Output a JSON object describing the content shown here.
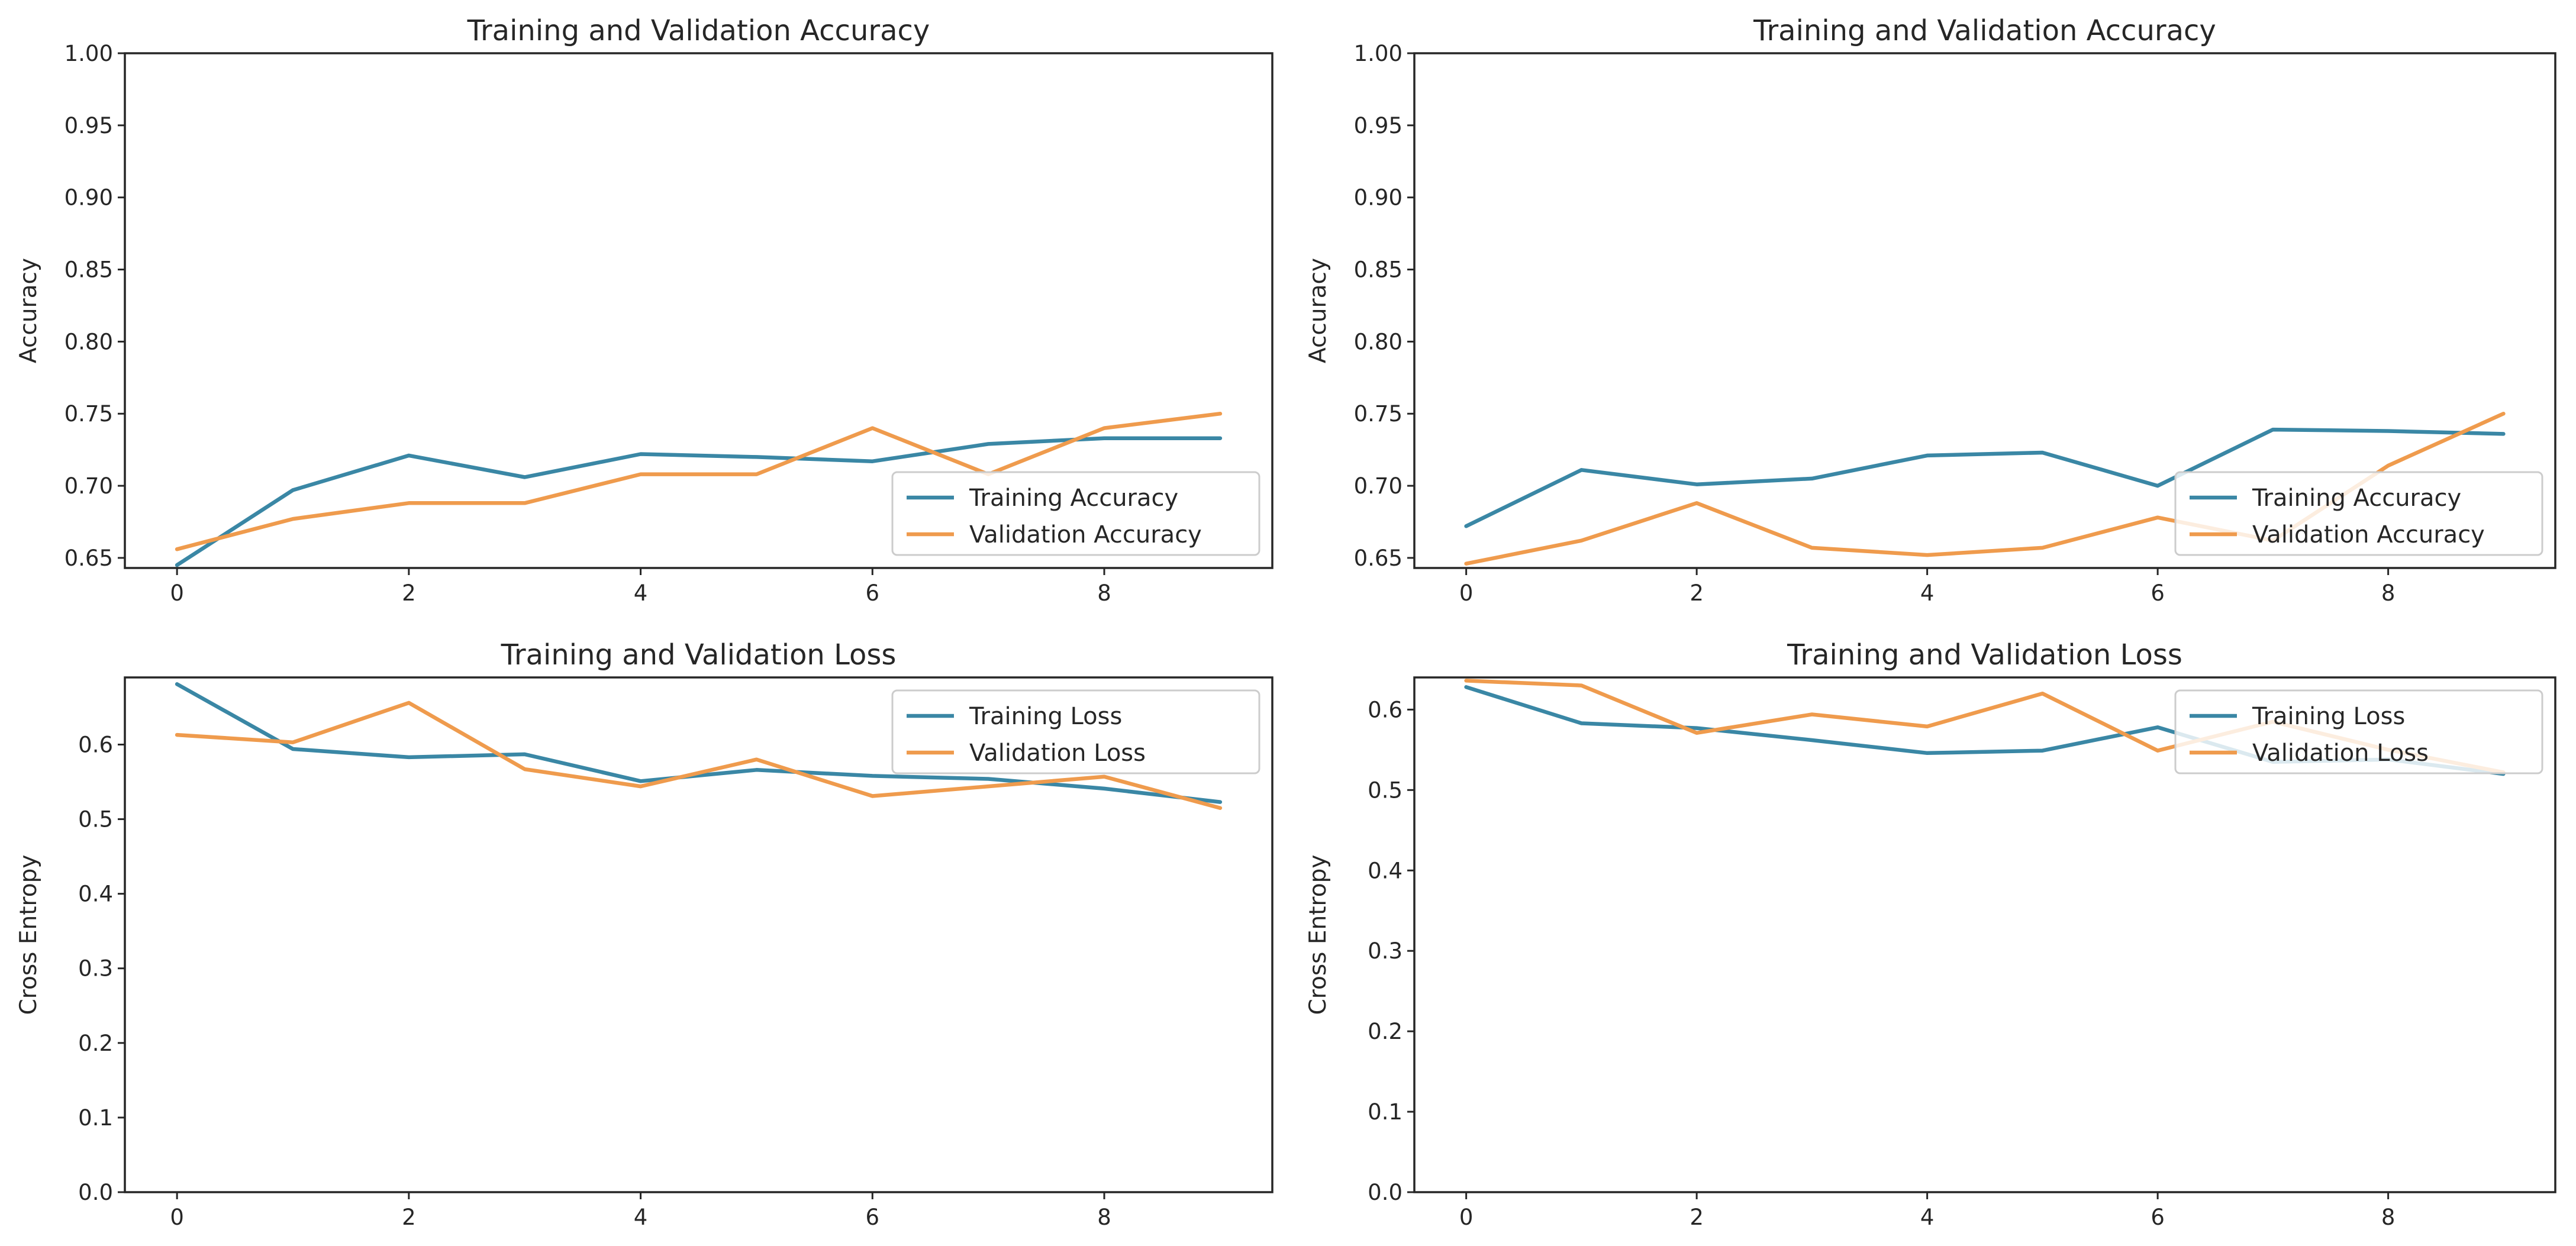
{
  "colors": {
    "training": "#3a87a5",
    "validation": "#ef9b4d"
  },
  "chart_data": [
    {
      "type": "line",
      "title": "Training and Validation Accuracy",
      "xlabel": "",
      "ylabel": "Accuracy",
      "xlim": [
        -0.45,
        9.45
      ],
      "ylim": [
        0.643,
        1.0
      ],
      "xticks": [
        0,
        2,
        4,
        6,
        8
      ],
      "yticks": [
        0.65,
        0.7,
        0.75,
        0.8,
        0.85,
        0.9,
        0.95,
        1.0
      ],
      "ytick_labels": [
        "0.65",
        "0.70",
        "0.75",
        "0.80",
        "0.85",
        "0.90",
        "0.95",
        "1.00"
      ],
      "legend_loc": "lower-right",
      "x": [
        0,
        1,
        2,
        3,
        4,
        5,
        6,
        7,
        8,
        9
      ],
      "series": [
        {
          "name": "Training Accuracy",
          "values": [
            0.645,
            0.697,
            0.721,
            0.706,
            0.722,
            0.72,
            0.717,
            0.729,
            0.733,
            0.733
          ]
        },
        {
          "name": "Validation Accuracy",
          "values": [
            0.656,
            0.677,
            0.688,
            0.688,
            0.708,
            0.708,
            0.74,
            0.708,
            0.74,
            0.75
          ]
        }
      ]
    },
    {
      "type": "line",
      "title": "Training and Validation Accuracy",
      "xlabel": "",
      "ylabel": "Accuracy",
      "xlim": [
        -0.45,
        9.45
      ],
      "ylim": [
        0.643,
        1.0
      ],
      "xticks": [
        0,
        2,
        4,
        6,
        8
      ],
      "yticks": [
        0.65,
        0.7,
        0.75,
        0.8,
        0.85,
        0.9,
        0.95,
        1.0
      ],
      "ytick_labels": [
        "0.65",
        "0.70",
        "0.75",
        "0.80",
        "0.85",
        "0.90",
        "0.95",
        "1.00"
      ],
      "legend_loc": "lower-right",
      "x": [
        0,
        1,
        2,
        3,
        4,
        5,
        6,
        7,
        8,
        9
      ],
      "series": [
        {
          "name": "Training Accuracy",
          "values": [
            0.672,
            0.711,
            0.701,
            0.705,
            0.721,
            0.723,
            0.7,
            0.739,
            0.738,
            0.736
          ]
        },
        {
          "name": "Validation Accuracy",
          "values": [
            0.646,
            0.662,
            0.688,
            0.657,
            0.652,
            0.657,
            0.678,
            0.662,
            0.714,
            0.75
          ]
        }
      ]
    },
    {
      "type": "line",
      "title": "Training and Validation Loss",
      "xlabel": "",
      "ylabel": "Cross Entropy",
      "xlim": [
        -0.45,
        9.45
      ],
      "ylim": [
        0.0,
        0.69
      ],
      "xticks": [
        0,
        2,
        4,
        6,
        8
      ],
      "yticks": [
        0.0,
        0.1,
        0.2,
        0.3,
        0.4,
        0.5,
        0.6
      ],
      "ytick_labels": [
        "0.0",
        "0.1",
        "0.2",
        "0.3",
        "0.4",
        "0.5",
        "0.6"
      ],
      "legend_loc": "upper-right",
      "x": [
        0,
        1,
        2,
        3,
        4,
        5,
        6,
        7,
        8,
        9
      ],
      "series": [
        {
          "name": "Training Loss",
          "values": [
            0.681,
            0.594,
            0.583,
            0.587,
            0.551,
            0.566,
            0.558,
            0.554,
            0.541,
            0.523
          ]
        },
        {
          "name": "Validation Loss",
          "values": [
            0.613,
            0.603,
            0.656,
            0.567,
            0.544,
            0.58,
            0.531,
            0.544,
            0.557,
            0.515
          ]
        }
      ]
    },
    {
      "type": "line",
      "title": "Training and Validation Loss",
      "xlabel": "",
      "ylabel": "Cross Entropy",
      "xlim": [
        -0.45,
        9.45
      ],
      "ylim": [
        0.0,
        0.64
      ],
      "xticks": [
        0,
        2,
        4,
        6,
        8
      ],
      "yticks": [
        0.0,
        0.1,
        0.2,
        0.3,
        0.4,
        0.5,
        0.6
      ],
      "ytick_labels": [
        "0.0",
        "0.1",
        "0.2",
        "0.3",
        "0.4",
        "0.5",
        "0.6"
      ],
      "legend_loc": "upper-right",
      "x": [
        0,
        1,
        2,
        3,
        4,
        5,
        6,
        7,
        8,
        9
      ],
      "series": [
        {
          "name": "Training Loss",
          "values": [
            0.628,
            0.583,
            0.577,
            0.562,
            0.546,
            0.549,
            0.578,
            0.535,
            0.538,
            0.52
          ]
        },
        {
          "name": "Validation Loss",
          "values": [
            0.636,
            0.63,
            0.571,
            0.594,
            0.579,
            0.62,
            0.549,
            0.585,
            0.55,
            0.522
          ]
        }
      ]
    }
  ]
}
